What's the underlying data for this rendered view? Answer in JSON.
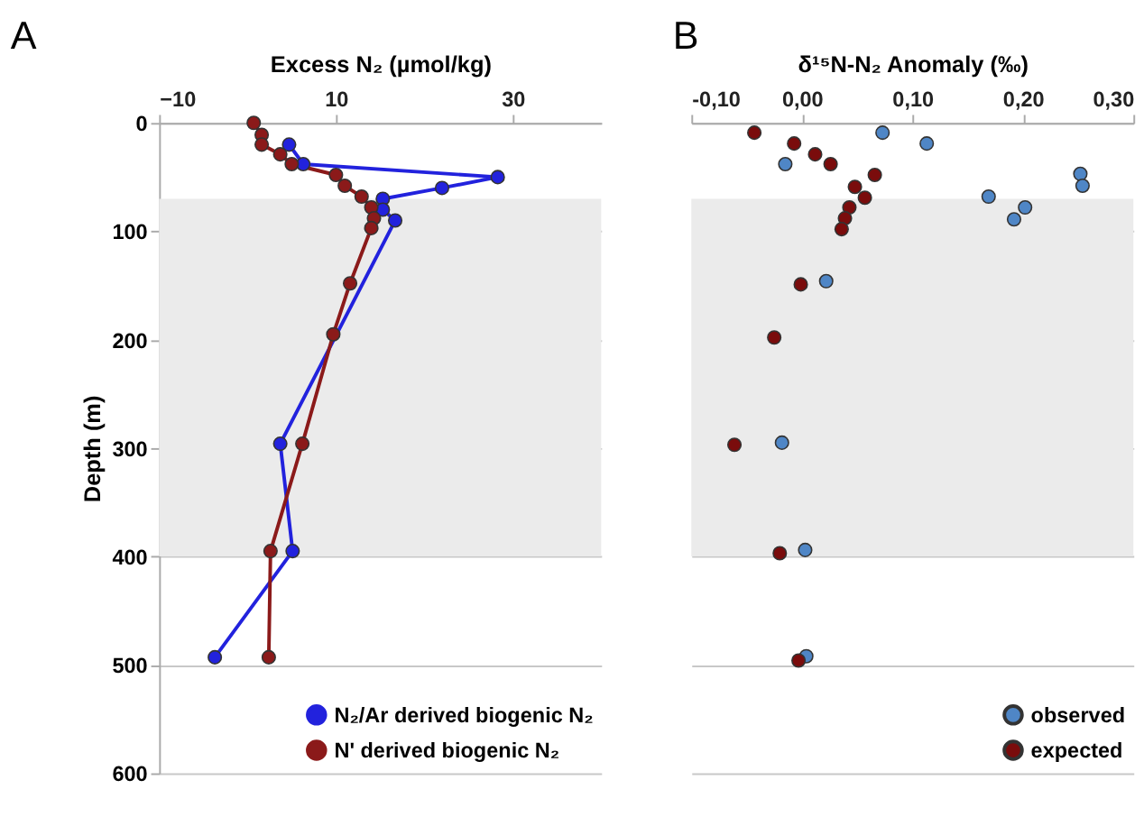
{
  "chart_data": [
    {
      "type": "line",
      "title": "A",
      "xlabel": "Excess N₂ (µmol/kg)",
      "ylabel": "Depth (m)",
      "xlim": [
        -10,
        40
      ],
      "xticks": [
        -10,
        10,
        30
      ],
      "ylim": [
        600,
        0
      ],
      "yticks": [
        0,
        100,
        200,
        300,
        400,
        500,
        600
      ],
      "grid": "y",
      "legend": "bottom right",
      "marker": "circle",
      "line_style": "solid",
      "bands": [
        {
          "axis": "y",
          "from": 70,
          "to": 400,
          "color": "#ebebeb"
        }
      ],
      "series": [
        {
          "name": "N₂/Ar derived biogenic N₂",
          "color": "#2222dd",
          "x": [
            null,
            4.7,
            6.3,
            28.3,
            22,
            15.3,
            15.3,
            16.7,
            null,
            3.7,
            5.1,
            -3.7
          ],
          "values": [
            null,
            20,
            38,
            50,
            60,
            70,
            80,
            90,
            null,
            296,
            395,
            493
          ]
        },
        {
          "name": "N' derived biogenic N₂",
          "color": "#8b1a1a",
          "x": [
            0.7,
            1.6,
            1.6,
            3.7,
            5,
            10,
            11,
            12.9,
            14,
            14.3,
            14,
            11.6,
            9.7,
            6.2,
            2.6,
            2.4
          ],
          "values": [
            0,
            11,
            20,
            29,
            38,
            48,
            58,
            68,
            78,
            88,
            97,
            148,
            195,
            296,
            395,
            493
          ]
        }
      ]
    },
    {
      "type": "scatter",
      "title": "B",
      "xlabel": "δ¹⁵N-N₂ Anomaly (‰)",
      "xlim": [
        -0.1,
        0.3
      ],
      "xticks": [
        {
          "value": -0.1,
          "label": "-0,10"
        },
        {
          "value": 0,
          "label": "0,00"
        },
        {
          "value": 0.1,
          "label": "0,10"
        },
        {
          "value": 0.2,
          "label": "0,20"
        },
        {
          "value": 0.3,
          "label": "0,30"
        }
      ],
      "ylim": [
        600,
        0
      ],
      "yticks": [
        0,
        100,
        200,
        300,
        400,
        500,
        600
      ],
      "grid": "y",
      "tick_labels": "x",
      "legend": "bottom right",
      "marker": "circle",
      "bands": [
        {
          "axis": "y",
          "from": 70,
          "to": 400,
          "color": "#ebebeb"
        }
      ],
      "series": [
        {
          "name": "observed",
          "color": "#4f86c6",
          "x": [
            0.073,
            0.113,
            -0.015,
            0.252,
            0.254,
            0.169,
            0.202,
            0.192,
            0.022,
            -0.018,
            0.003,
            0.004
          ],
          "values": [
            9,
            19,
            38,
            47,
            58,
            68,
            78,
            89,
            146,
            295,
            394,
            492
          ]
        },
        {
          "name": "expected",
          "color": "#7a0c0c",
          "x": [
            -0.043,
            -0.007,
            0.012,
            0.026,
            0.066,
            0.048,
            0.057,
            0.043,
            0.039,
            0.036,
            -0.001,
            -0.025,
            -0.061,
            -0.02,
            -0.003
          ],
          "values": [
            9,
            19,
            29,
            38,
            48,
            59,
            69,
            78,
            88,
            98,
            149,
            198,
            297,
            397,
            496
          ]
        }
      ]
    }
  ]
}
